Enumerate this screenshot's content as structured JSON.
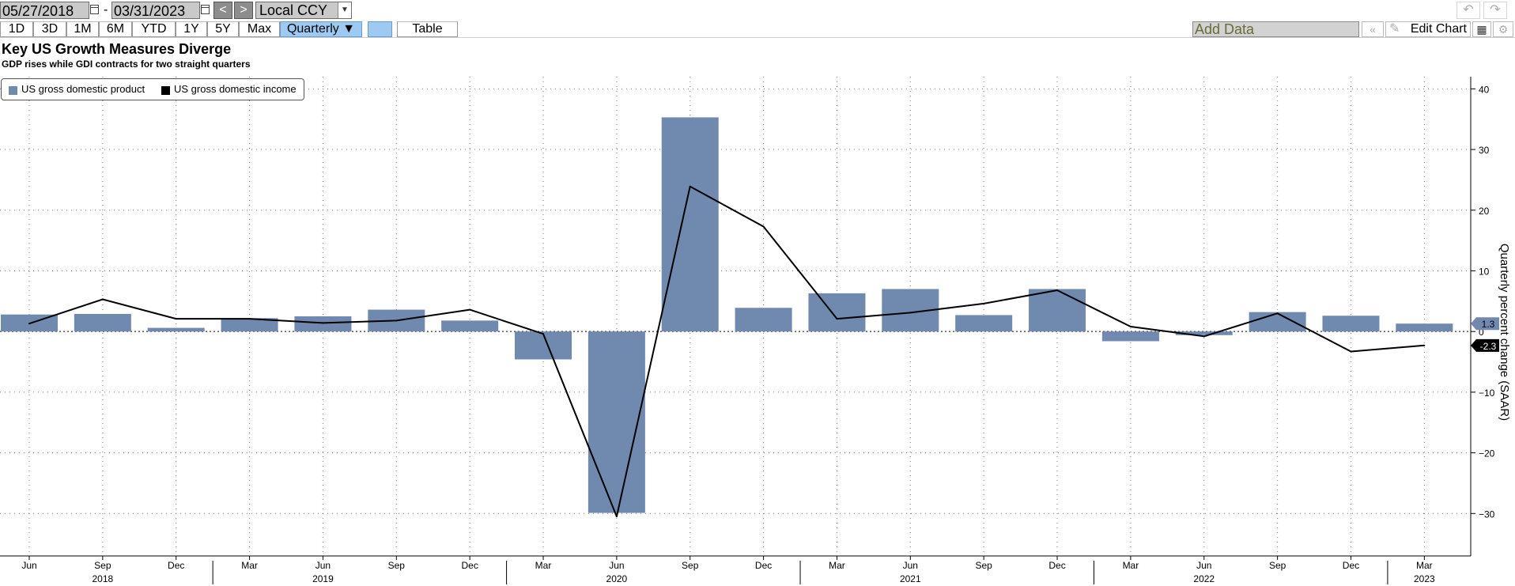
{
  "toolbar": {
    "start_date": "05/27/2018",
    "end_date": "03/31/2023",
    "date_separator": "-",
    "prev_label": "<",
    "next_label": ">",
    "currency": "Local CCY",
    "periods": [
      "1D",
      "3D",
      "1M",
      "6M",
      "YTD",
      "1Y",
      "5Y",
      "Max"
    ],
    "frequency": "Quarterly ▼",
    "table_label": "Table",
    "add_data_placeholder": "Add Data",
    "edit_chart_label": "Edit Chart",
    "collapse_label": "«"
  },
  "chart_data": {
    "type": "bar+line",
    "title": "Key US Growth Measures Diverge",
    "subtitle": "GDP rises while GDI contracts for two straight quarters",
    "ylabel": "Quarterly percent change (SAAR)",
    "ylim": [
      -37,
      42
    ],
    "yticks": [
      40,
      30,
      20,
      10,
      0,
      -10,
      -20,
      -30
    ],
    "categories": [
      "2018-06",
      "2018-09",
      "2018-12",
      "2019-03",
      "2019-06",
      "2019-09",
      "2019-12",
      "2020-03",
      "2020-06",
      "2020-09",
      "2020-12",
      "2021-03",
      "2021-06",
      "2021-09",
      "2021-12",
      "2022-03",
      "2022-06",
      "2022-09",
      "2022-12",
      "2023-03"
    ],
    "x_month_labels": [
      "Jun",
      "Sep",
      "Dec",
      "Mar",
      "Jun",
      "Sep",
      "Dec",
      "Mar",
      "Jun",
      "Sep",
      "Dec",
      "Mar",
      "Jun",
      "Sep",
      "Dec",
      "Mar",
      "Jun",
      "Sep",
      "Dec",
      "Mar"
    ],
    "x_year_labels": [
      {
        "label": "2018",
        "index": 1
      },
      {
        "label": "2019",
        "index": 4
      },
      {
        "label": "2020",
        "index": 8
      },
      {
        "label": "2021",
        "index": 12
      },
      {
        "label": "2022",
        "index": 16
      },
      {
        "label": "2023",
        "index": 19
      }
    ],
    "series": [
      {
        "name": "US gross domestic product",
        "kind": "bar",
        "color": "#7089ae",
        "values": [
          2.8,
          2.9,
          0.6,
          2.2,
          2.5,
          3.6,
          1.8,
          -4.6,
          -29.9,
          35.3,
          3.9,
          6.3,
          7.0,
          2.7,
          7.0,
          -1.6,
          -0.6,
          3.2,
          2.6,
          1.3
        ]
      },
      {
        "name": "US gross domestic income",
        "kind": "line",
        "color": "#000000",
        "values": [
          1.3,
          5.3,
          2.1,
          2.1,
          1.4,
          1.8,
          3.6,
          -0.4,
          -30.5,
          23.9,
          17.3,
          2.1,
          3.1,
          4.6,
          6.8,
          0.8,
          -0.8,
          3.0,
          -3.3,
          -2.3
        ]
      }
    ],
    "last_value_labels": [
      "1.3",
      "-2.3"
    ],
    "grid": true,
    "legend_position": "top-left"
  }
}
